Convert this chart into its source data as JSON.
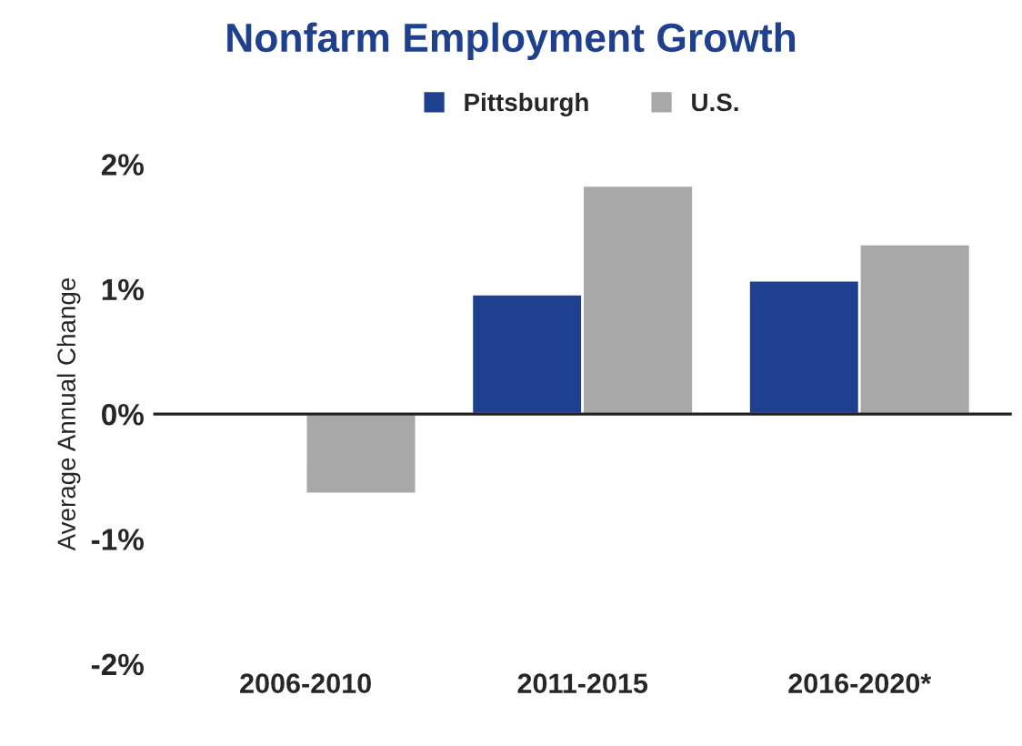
{
  "chart_data": {
    "type": "bar",
    "title": "Nonfarm Employment Growth",
    "ylabel": "Average Annual Change",
    "categories": [
      "2006-2010",
      "2011-2015",
      "2016-2020*"
    ],
    "series": [
      {
        "name": "Pittsburgh",
        "color": "#1f3f8f",
        "values": [
          0.01,
          0.96,
          1.07
        ]
      },
      {
        "name": "U.S.",
        "color": "#a8a8a8",
        "values": [
          -0.64,
          1.83,
          1.36
        ]
      }
    ],
    "ylim": [
      -2,
      2
    ],
    "yticks": [
      {
        "value": -2,
        "label": "-2%"
      },
      {
        "value": -1,
        "label": "-1%"
      },
      {
        "value": 0,
        "label": "0%"
      },
      {
        "value": 1,
        "label": "1%"
      },
      {
        "value": 2,
        "label": "2%"
      }
    ],
    "ref_lines": [
      {
        "axis": "y",
        "value": 0,
        "color": "#222222"
      }
    ],
    "legend": "top",
    "grid": false
  }
}
